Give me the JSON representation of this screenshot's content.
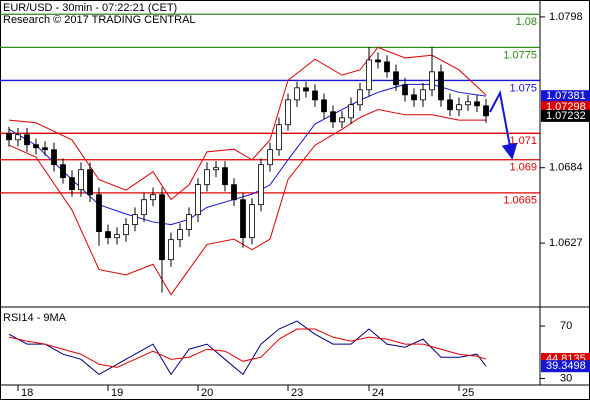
{
  "chart_data": [
    {
      "type": "candlestick",
      "title": "EUR/USD - 30min - 07:22:21 (CET)",
      "subtitle": "Research © 2017 TRADING CENTRAL",
      "categories": [
        null,
        "18",
        null,
        null,
        null,
        null,
        null,
        null,
        null,
        null,
        null,
        "19",
        null,
        null,
        null,
        null,
        null,
        null,
        null,
        null,
        null,
        "20",
        null,
        null,
        null,
        null,
        null,
        null,
        null,
        null,
        null,
        "23",
        null,
        null,
        null,
        null,
        null,
        null,
        null,
        null,
        "24",
        null,
        null,
        null,
        null,
        null,
        null,
        null,
        null,
        null,
        "25",
        null,
        null,
        null
      ],
      "open": [
        1.071,
        1.07051,
        1.07089,
        1.07014,
        1.06991,
        1.06976,
        1.06863,
        1.06765,
        1.06674,
        1.06825,
        1.06636,
        1.06357,
        1.06311,
        1.06334,
        1.0641,
        1.06485,
        1.06598,
        1.06636,
        1.06145,
        1.06296,
        1.06372,
        1.06485,
        1.06712,
        1.06825,
        1.0684,
        1.06712,
        1.06598,
        1.06311,
        1.06561,
        1.06863,
        1.06976,
        1.07165,
        1.07353,
        1.07444,
        1.0742,
        1.07353,
        1.07263,
        1.07187,
        1.07217,
        1.07316,
        1.07429,
        1.07655,
        1.0764,
        1.07565,
        1.07467,
        1.07391,
        1.07353,
        1.07429,
        1.07565,
        1.07353,
        1.07278,
        1.07316,
        1.07338,
        1.07308
      ],
      "high": [
        1.0715,
        1.0714,
        1.0714,
        1.0706,
        1.0704,
        1.0703,
        1.0691,
        1.0682,
        1.0688,
        1.0688,
        1.0669,
        1.0641,
        1.0639,
        1.0646,
        1.0654,
        1.0665,
        1.0669,
        1.0669,
        1.0635,
        1.0642,
        1.0654,
        1.0676,
        1.0688,
        1.0689,
        1.0689,
        1.0676,
        1.0665,
        1.0661,
        1.0691,
        1.0703,
        1.0722,
        1.074,
        1.0749,
        1.0749,
        1.0747,
        1.074,
        1.0731,
        1.0727,
        1.0737,
        1.0748,
        1.07753,
        1.0771,
        1.0769,
        1.0762,
        1.0752,
        1.0744,
        1.0748,
        1.07753,
        1.0762,
        1.074,
        1.0737,
        1.0739,
        1.0739,
        1.0736
      ],
      "low": [
        1.07,
        1.07,
        1.0696,
        1.0694,
        1.0693,
        1.0681,
        1.0672,
        1.0662,
        1.0662,
        1.0658,
        1.0625,
        1.0626,
        1.0626,
        1.0628,
        1.0636,
        1.0643,
        1.0655,
        1.05896,
        1.0609,
        1.0624,
        1.0632,
        1.0643,
        1.0666,
        1.0677,
        1.0666,
        1.0655,
        1.06236,
        1.0626,
        1.0651,
        1.0681,
        1.0693,
        1.0712,
        1.073,
        1.0737,
        1.073,
        1.0721,
        1.0714,
        1.0714,
        1.0717,
        1.0727,
        1.0738,
        1.0759,
        1.0752,
        1.0742,
        1.0734,
        1.073,
        1.073,
        1.0738,
        1.073,
        1.0723,
        1.0723,
        1.0727,
        1.0726,
        1.0718
      ],
      "close": [
        1.07051,
        1.07089,
        1.07014,
        1.06991,
        1.06976,
        1.06863,
        1.06765,
        1.06674,
        1.06825,
        1.06636,
        1.06357,
        1.06311,
        1.06334,
        1.0641,
        1.06485,
        1.06598,
        1.06636,
        1.06145,
        1.06296,
        1.06372,
        1.06485,
        1.06712,
        1.06825,
        1.0684,
        1.06712,
        1.06598,
        1.06311,
        1.06561,
        1.06863,
        1.06976,
        1.07165,
        1.07353,
        1.07444,
        1.0742,
        1.07353,
        1.07263,
        1.07187,
        1.07217,
        1.07316,
        1.07429,
        1.07655,
        1.0764,
        1.07565,
        1.07467,
        1.07391,
        1.07353,
        1.07429,
        1.07565,
        1.07353,
        1.07278,
        1.07316,
        1.07338,
        1.07308,
        1.07232
      ],
      "color": "#000000",
      "lines": [
        {
          "color": "#1515d4",
          "x": [
            0,
            3,
            7,
            10,
            13,
            16,
            18,
            20,
            22,
            25,
            27,
            29,
            31,
            34,
            37,
            39,
            41,
            44,
            47,
            50,
            53
          ],
          "values": [
            1.0713,
            1.0701,
            1.0675,
            1.0656,
            1.0649,
            1.0643,
            1.0641,
            1.0645,
            1.0654,
            1.066,
            1.0664,
            1.0671,
            1.069,
            1.0717,
            1.0728,
            1.0735,
            1.0741,
            1.0747,
            1.0747,
            1.0741,
            1.07381
          ]
        },
        {
          "color": "#dd0000",
          "x": [
            0,
            3,
            7,
            10,
            13,
            16,
            18,
            20,
            22,
            25,
            27,
            29,
            31,
            34,
            37,
            39,
            41,
            44,
            47,
            50,
            53
          ],
          "values": [
            1.072,
            1.0718,
            1.0705,
            1.0675,
            1.0667,
            1.0681,
            1.066,
            1.0671,
            1.0696,
            1.0698,
            1.069,
            1.0705,
            1.075,
            1.0766,
            1.0754,
            1.0758,
            1.0775,
            1.0767,
            1.0769,
            1.0758,
            1.0739
          ]
        },
        {
          "color": "#dd0000",
          "x": [
            0,
            3,
            7,
            10,
            13,
            16,
            18,
            20,
            22,
            25,
            27,
            29,
            31,
            34,
            37,
            39,
            41,
            44,
            47,
            50,
            53
          ],
          "values": [
            1.0701,
            1.0692,
            1.0652,
            1.0607,
            1.0603,
            1.0611,
            1.0588,
            1.0607,
            1.0626,
            1.063,
            1.0622,
            1.063,
            1.0675,
            1.0701,
            1.0713,
            1.0722,
            1.0728,
            1.0724,
            1.0724,
            1.072,
            1.072
          ]
        }
      ],
      "levels": [
        {
          "value": 1.08,
          "color": "#2a8a1a"
        },
        {
          "value": 1.0775,
          "color": "#2a8a1a"
        },
        {
          "value": 1.075,
          "color": "#1515d4"
        },
        {
          "value": 1.071,
          "color": "#dd0000"
        },
        {
          "value": 1.069,
          "color": "#dd0000"
        },
        {
          "value": 1.0665,
          "color": "#dd0000"
        }
      ],
      "price_tags": [
        {
          "value": 1.07381,
          "color": "#1515d4"
        },
        {
          "value": 1.07298,
          "color": "#dd0000"
        },
        {
          "value": 1.07232,
          "color": "#000000"
        }
      ],
      "ylim": [
        1.05802,
        1.08108
      ],
      "yticks": [
        1.0798,
        1.0684,
        1.0627
      ]
    },
    {
      "type": "line",
      "title": "RSI14 - 9MA",
      "series": [
        {
          "color": "#000080",
          "x": [
            0,
            2,
            4,
            6,
            8,
            10,
            12,
            14,
            16,
            18,
            20,
            22,
            24,
            26,
            28,
            30,
            32,
            34,
            36,
            38,
            40,
            42,
            44,
            46,
            48,
            50,
            52,
            53
          ],
          "values": [
            63.8,
            56.2,
            56.2,
            48.5,
            44.6,
            33.1,
            40.8,
            48.5,
            56.2,
            33.1,
            52.3,
            56.2,
            44.6,
            33.1,
            56.2,
            67.7,
            73.8,
            63.8,
            56.2,
            56.2,
            67.7,
            56.2,
            53.8,
            60.0,
            46.2,
            46.2,
            48.5,
            39.3
          ]
        },
        {
          "color": "#dd0000",
          "x": [
            0,
            2,
            4,
            6,
            8,
            10,
            12,
            14,
            16,
            18,
            20,
            22,
            24,
            26,
            28,
            30,
            32,
            34,
            36,
            38,
            40,
            42,
            44,
            46,
            48,
            50,
            52,
            53
          ],
          "values": [
            61.5,
            58.5,
            56.2,
            52.3,
            48.5,
            40.8,
            38.5,
            44.6,
            50.8,
            44.6,
            46.2,
            52.3,
            50.8,
            43.1,
            46.2,
            60.0,
            67.7,
            67.7,
            61.5,
            58.5,
            61.5,
            60.0,
            56.2,
            56.2,
            52.3,
            48.5,
            46.9,
            44.8
          ]
        }
      ],
      "value_tags": [
        {
          "value": 44.8135,
          "color": "#dd0000"
        },
        {
          "value": 39.3498,
          "color": "#1515d4"
        }
      ],
      "ylim": [
        25,
        83
      ],
      "yticks": [
        70,
        30
      ]
    }
  ]
}
